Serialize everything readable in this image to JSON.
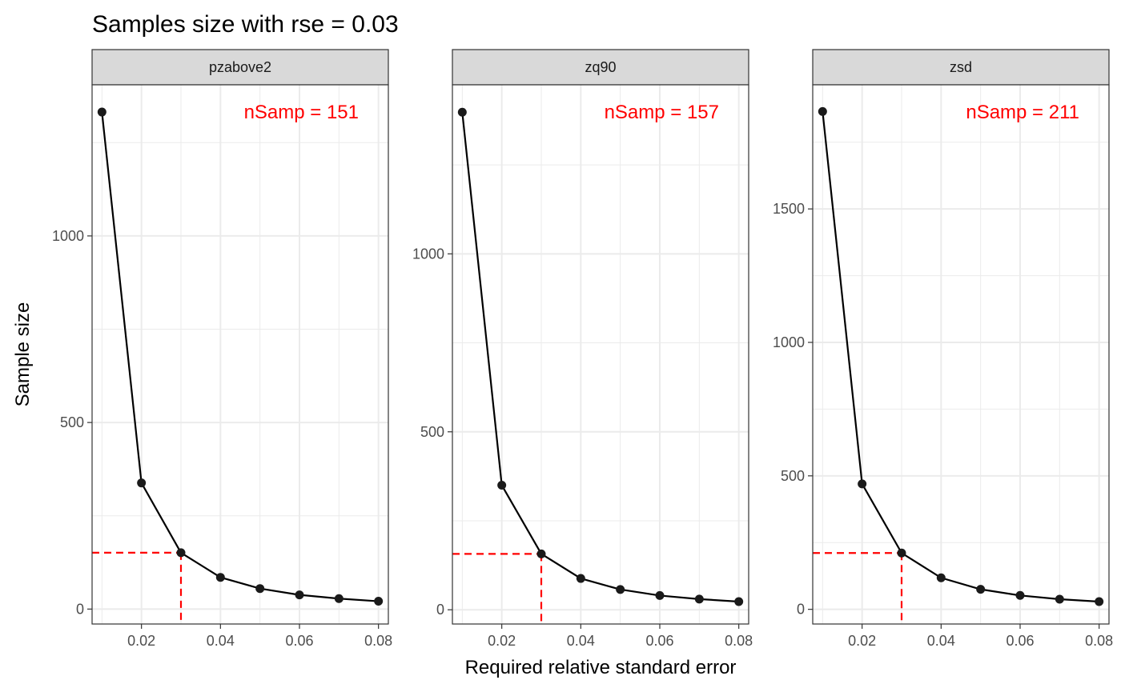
{
  "chart_data": {
    "type": "line",
    "title": "Samples size with rse = 0.03",
    "xlabel": "Required relative standard error",
    "ylabel": "Sample size",
    "x": [
      0.01,
      0.02,
      0.03,
      0.04,
      0.05,
      0.06,
      0.07,
      0.08
    ],
    "x_ticks": [
      "0.02",
      "0.04",
      "0.06",
      "0.08"
    ],
    "xlim": [
      0.0075,
      0.0825
    ],
    "target_rse": 0.03,
    "grid": true,
    "colors": {
      "line": "#000000",
      "point": "#1a1a1a",
      "highlight": "#ff0000",
      "strip_fill": "#d9d9d9",
      "grid": "#ebebeb"
    },
    "panels": [
      {
        "name": "pzabove2",
        "annotation": "nSamp = 151",
        "values": [
          1332,
          338,
          151,
          85,
          55,
          38,
          28,
          21
        ],
        "target_value": 151,
        "ylim": [
          -40,
          1405
        ],
        "y_ticks": [
          "0",
          "500",
          "1000"
        ]
      },
      {
        "name": "zq90",
        "annotation": "nSamp = 157",
        "values": [
          1398,
          350,
          157,
          88,
          57,
          40,
          30,
          23
        ],
        "target_value": 157,
        "ylim": [
          -40,
          1475
        ],
        "y_ticks": [
          "0",
          "500",
          "1000"
        ]
      },
      {
        "name": "zsd",
        "annotation": "nSamp = 211",
        "values": [
          1865,
          470,
          211,
          118,
          75,
          52,
          38,
          29
        ],
        "target_value": 211,
        "ylim": [
          -55,
          1965
        ],
        "y_ticks": [
          "0",
          "500",
          "1000",
          "1500"
        ]
      }
    ]
  }
}
